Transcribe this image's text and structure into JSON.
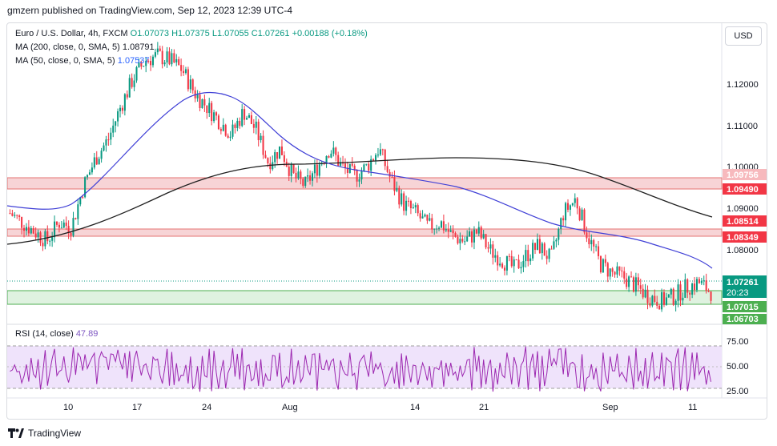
{
  "header": {
    "published_text": "gmzern published on TradingView.com, Sep 12, 2023 12:39 UTC-4"
  },
  "legend": {
    "symbol": "Euro / U.S. Dollar, 4h, FXCM",
    "open": "O1.07073",
    "high": "H1.07375",
    "low": "L1.07055",
    "close": "C1.07261",
    "change": "+0.00188 (+0.18%)",
    "ma200_label": "MA (200, close, 0, SMA, 5)",
    "ma200_value": "1.08791",
    "ma50_label": "MA (50, close, 0, SMA, 5)",
    "ma50_value": "1.07537"
  },
  "currency_button": "USD",
  "price_axis": [
    "1.12000",
    "1.11000",
    "1.10000",
    "1.09000",
    "1.08000"
  ],
  "price_labels": {
    "zone1_top": "1.09756",
    "zone1_bottom": "1.09490",
    "zone2_top": "1.08514",
    "zone2_bottom": "1.08349",
    "last_price": "1.07261",
    "countdown": "20:23",
    "zone3_top": "1.07015",
    "zone3_bottom": "1.06703"
  },
  "time_axis": [
    "10",
    "17",
    "24",
    "Aug",
    "14",
    "21",
    "Sep",
    "11"
  ],
  "rsi": {
    "label": "RSI (14, close)",
    "value": "47.89",
    "axis": [
      "75.00",
      "50.00",
      "25.00"
    ]
  },
  "footer": {
    "brand": "TradingView"
  },
  "colors": {
    "up": "#089981",
    "down": "#f23645",
    "ma50": "#3f3fd6",
    "ma200": "#1e1e1e",
    "resistance": "#f5c6c9",
    "support": "#cdebd0",
    "rsi": "#9c27b0",
    "rsi_band": "#e9dbf7"
  },
  "chart_data": {
    "type": "candlestick",
    "title": "Euro / U.S. Dollar, 4h, FXCM",
    "ylim": [
      1.066,
      1.131
    ],
    "close_path": [
      1.09,
      1.088,
      1.086,
      1.084,
      1.088,
      1.087,
      1.096,
      1.102,
      1.106,
      1.113,
      1.119,
      1.123,
      1.124,
      1.123,
      1.121,
      1.116,
      1.113,
      1.11,
      1.107,
      1.112,
      1.108,
      1.101,
      1.104,
      1.098,
      1.096,
      1.1,
      1.104,
      1.1,
      1.098,
      1.1,
      1.104,
      1.097,
      1.092,
      1.09,
      1.087,
      1.088,
      1.085,
      1.084,
      1.086,
      1.082,
      1.08,
      1.078,
      1.081,
      1.083,
      1.08,
      1.09,
      1.093,
      1.085,
      1.079,
      1.077,
      1.076,
      1.074,
      1.072,
      1.071,
      1.072,
      1.074,
      1.075,
      1.073
    ]
  }
}
